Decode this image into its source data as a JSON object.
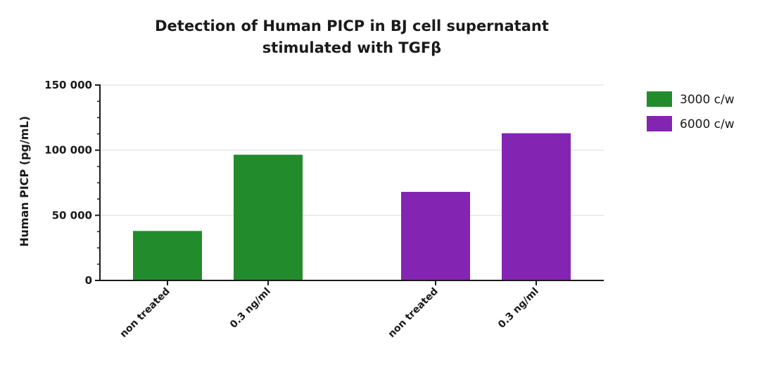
{
  "chart_data": {
    "type": "bar",
    "title": [
      "Detection of Human PICP in BJ cell supernatant",
      "stimulated with TGFβ"
    ],
    "ylabel": "Human PICP (pg/mL)",
    "xlabel": "",
    "ylim": [
      0,
      150000
    ],
    "yticks": [
      0,
      50000,
      100000,
      150000
    ],
    "ytick_labels": [
      "0",
      "50 000",
      "100 000",
      "150 000"
    ],
    "grid": true,
    "legend_position": "top-right",
    "groups": [
      {
        "series": "3000 c/w",
        "color": "#228b2c",
        "categories": [
          "non treated",
          "0.3 ng/ml"
        ],
        "values": [
          38000,
          96500
        ]
      },
      {
        "series": "6000 c/w",
        "color": "#8424b3",
        "categories": [
          "non treated",
          "0.3 ng/ml"
        ],
        "values": [
          68000,
          113000
        ]
      }
    ],
    "legend": [
      {
        "name": "3000 c/w",
        "color": "#228b2c"
      },
      {
        "name": "6000 c/w",
        "color": "#8424b3"
      }
    ]
  }
}
